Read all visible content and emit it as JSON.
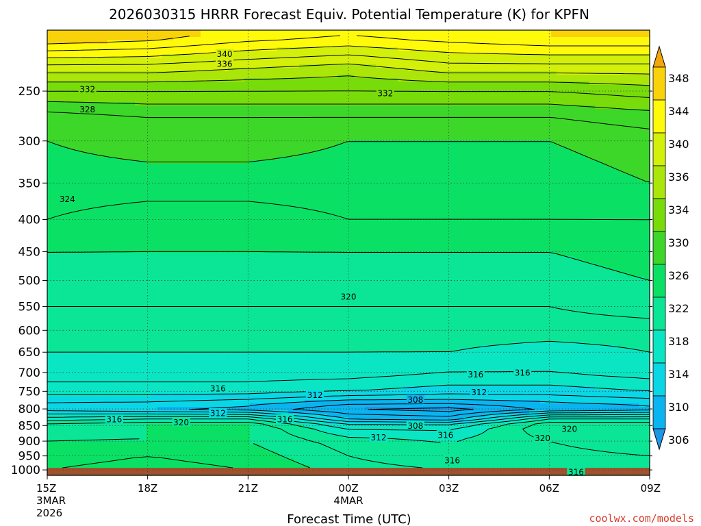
{
  "chart_data": {
    "type": "heatmap",
    "title": "2026030315 HRRR Forecast Equiv. Potential Temperature (K) for KPFN",
    "xlabel": "Forecast Time (UTC)",
    "ylabel": "",
    "credit": "coolwx.com/models",
    "x_ticks": [
      {
        "time": "15Z",
        "line2": "3MAR",
        "line3": "2026",
        "hours": 0
      },
      {
        "time": "18Z",
        "line2": "",
        "line3": "",
        "hours": 3
      },
      {
        "time": "21Z",
        "line2": "",
        "line3": "",
        "hours": 6
      },
      {
        "time": "00Z",
        "line2": "4MAR",
        "line3": "",
        "hours": 9
      },
      {
        "time": "03Z",
        "line2": "",
        "line3": "",
        "hours": 12
      },
      {
        "time": "06Z",
        "line2": "",
        "line3": "",
        "hours": 15
      },
      {
        "time": "09Z",
        "line2": "",
        "line3": "",
        "hours": 18
      }
    ],
    "y_ticks": [
      250,
      300,
      350,
      400,
      450,
      500,
      550,
      600,
      650,
      700,
      750,
      800,
      850,
      900,
      950,
      1000
    ],
    "y_scale": "log",
    "y_range_hpa": [
      1020,
      200
    ],
    "colorbar_ticks": [
      348,
      344,
      340,
      336,
      334,
      330,
      326,
      322,
      318,
      314,
      310,
      306
    ],
    "colorbar_colors": [
      "#f2a60a",
      "#fad20a",
      "#fffa0a",
      "#d2f00a",
      "#aae60a",
      "#78dc0a",
      "#3cd728",
      "#0ae164",
      "#0ae696",
      "#0ae6c3",
      "#0ad7e6",
      "#0ab4f0",
      "#1e96e6"
    ],
    "levels": [
      {
        "p": 205,
        "values": [
          346,
          345,
          343,
          342,
          343,
          344,
          344
        ]
      },
      {
        "p": 230,
        "values": [
          337,
          337,
          336,
          335,
          337,
          337,
          337
        ]
      },
      {
        "p": 250,
        "values": [
          332,
          332,
          332,
          332,
          332,
          332,
          333
        ]
      },
      {
        "p": 275,
        "values": [
          327,
          328,
          328,
          328,
          328,
          328,
          329
        ]
      },
      {
        "p": 300,
        "values": [
          326,
          327,
          327,
          326,
          326,
          326,
          327
        ]
      },
      {
        "p": 350,
        "values": [
          325,
          325,
          325,
          325,
          325,
          325,
          326
        ]
      },
      {
        "p": 400,
        "values": [
          324,
          323,
          323,
          324,
          324,
          324,
          324
        ]
      },
      {
        "p": 450,
        "values": [
          322,
          322,
          322,
          322,
          322,
          322,
          323
        ]
      },
      {
        "p": 500,
        "values": [
          321,
          321,
          321,
          321,
          321,
          321,
          322
        ]
      },
      {
        "p": 550,
        "values": [
          320,
          320,
          320,
          320,
          320,
          320,
          321
        ]
      },
      {
        "p": 600,
        "values": [
          319,
          319,
          319,
          319,
          319,
          319,
          319
        ]
      },
      {
        "p": 650,
        "values": [
          318,
          318,
          318,
          318,
          318,
          317,
          318
        ]
      },
      {
        "p": 700,
        "values": [
          317,
          317,
          317,
          317,
          316,
          316,
          317
        ]
      },
      {
        "p": 750,
        "values": [
          315,
          315,
          315,
          314,
          313,
          313,
          314
        ]
      },
      {
        "p": 780,
        "values": [
          312,
          312,
          311,
          309,
          309,
          310,
          311
        ]
      },
      {
        "p": 800,
        "values": [
          311,
          310,
          309,
          306,
          305,
          308,
          309
        ]
      },
      {
        "p": 830,
        "values": [
          317,
          318,
          318,
          310,
          309,
          318,
          318
        ]
      },
      {
        "p": 850,
        "values": [
          321,
          322,
          322,
          315,
          315,
          322,
          322
        ]
      },
      {
        "p": 900,
        "values": [
          322,
          322,
          322,
          319,
          318,
          320,
          322
        ]
      },
      {
        "p": 950,
        "values": [
          323,
          324,
          323,
          320,
          318,
          319,
          320
        ]
      },
      {
        "p": 1000,
        "values": [
          324,
          325,
          324,
          321,
          320,
          318,
          318
        ]
      }
    ],
    "contour_labels": [
      {
        "value": "340",
        "hour": 5.3,
        "p": 218
      },
      {
        "value": "336",
        "hour": 5.3,
        "p": 226
      },
      {
        "value": "332",
        "hour": 1.2,
        "p": 248
      },
      {
        "value": "332",
        "hour": 10.1,
        "p": 252
      },
      {
        "value": "328",
        "hour": 1.2,
        "p": 267
      },
      {
        "value": "324",
        "hour": 0.6,
        "p": 371
      },
      {
        "value": "320",
        "hour": 9.0,
        "p": 530
      },
      {
        "value": "316",
        "hour": 12.8,
        "p": 705
      },
      {
        "value": "316",
        "hour": 14.2,
        "p": 700
      },
      {
        "value": "316",
        "hour": 5.1,
        "p": 742
      },
      {
        "value": "312",
        "hour": 8.0,
        "p": 760
      },
      {
        "value": "312",
        "hour": 12.9,
        "p": 752
      },
      {
        "value": "308",
        "hour": 11.0,
        "p": 773
      },
      {
        "value": "312",
        "hour": 5.1,
        "p": 812
      },
      {
        "value": "316",
        "hour": 2.0,
        "p": 830
      },
      {
        "value": "316",
        "hour": 7.1,
        "p": 830
      },
      {
        "value": "320",
        "hour": 4.0,
        "p": 840
      },
      {
        "value": "308",
        "hour": 11.0,
        "p": 850
      },
      {
        "value": "320",
        "hour": 15.6,
        "p": 860
      },
      {
        "value": "312",
        "hour": 9.9,
        "p": 888
      },
      {
        "value": "316",
        "hour": 11.9,
        "p": 880
      },
      {
        "value": "320",
        "hour": 14.8,
        "p": 890
      },
      {
        "value": "316",
        "hour": 12.1,
        "p": 965
      },
      {
        "value": "316",
        "hour": 15.8,
        "p": 1007
      }
    ]
  }
}
